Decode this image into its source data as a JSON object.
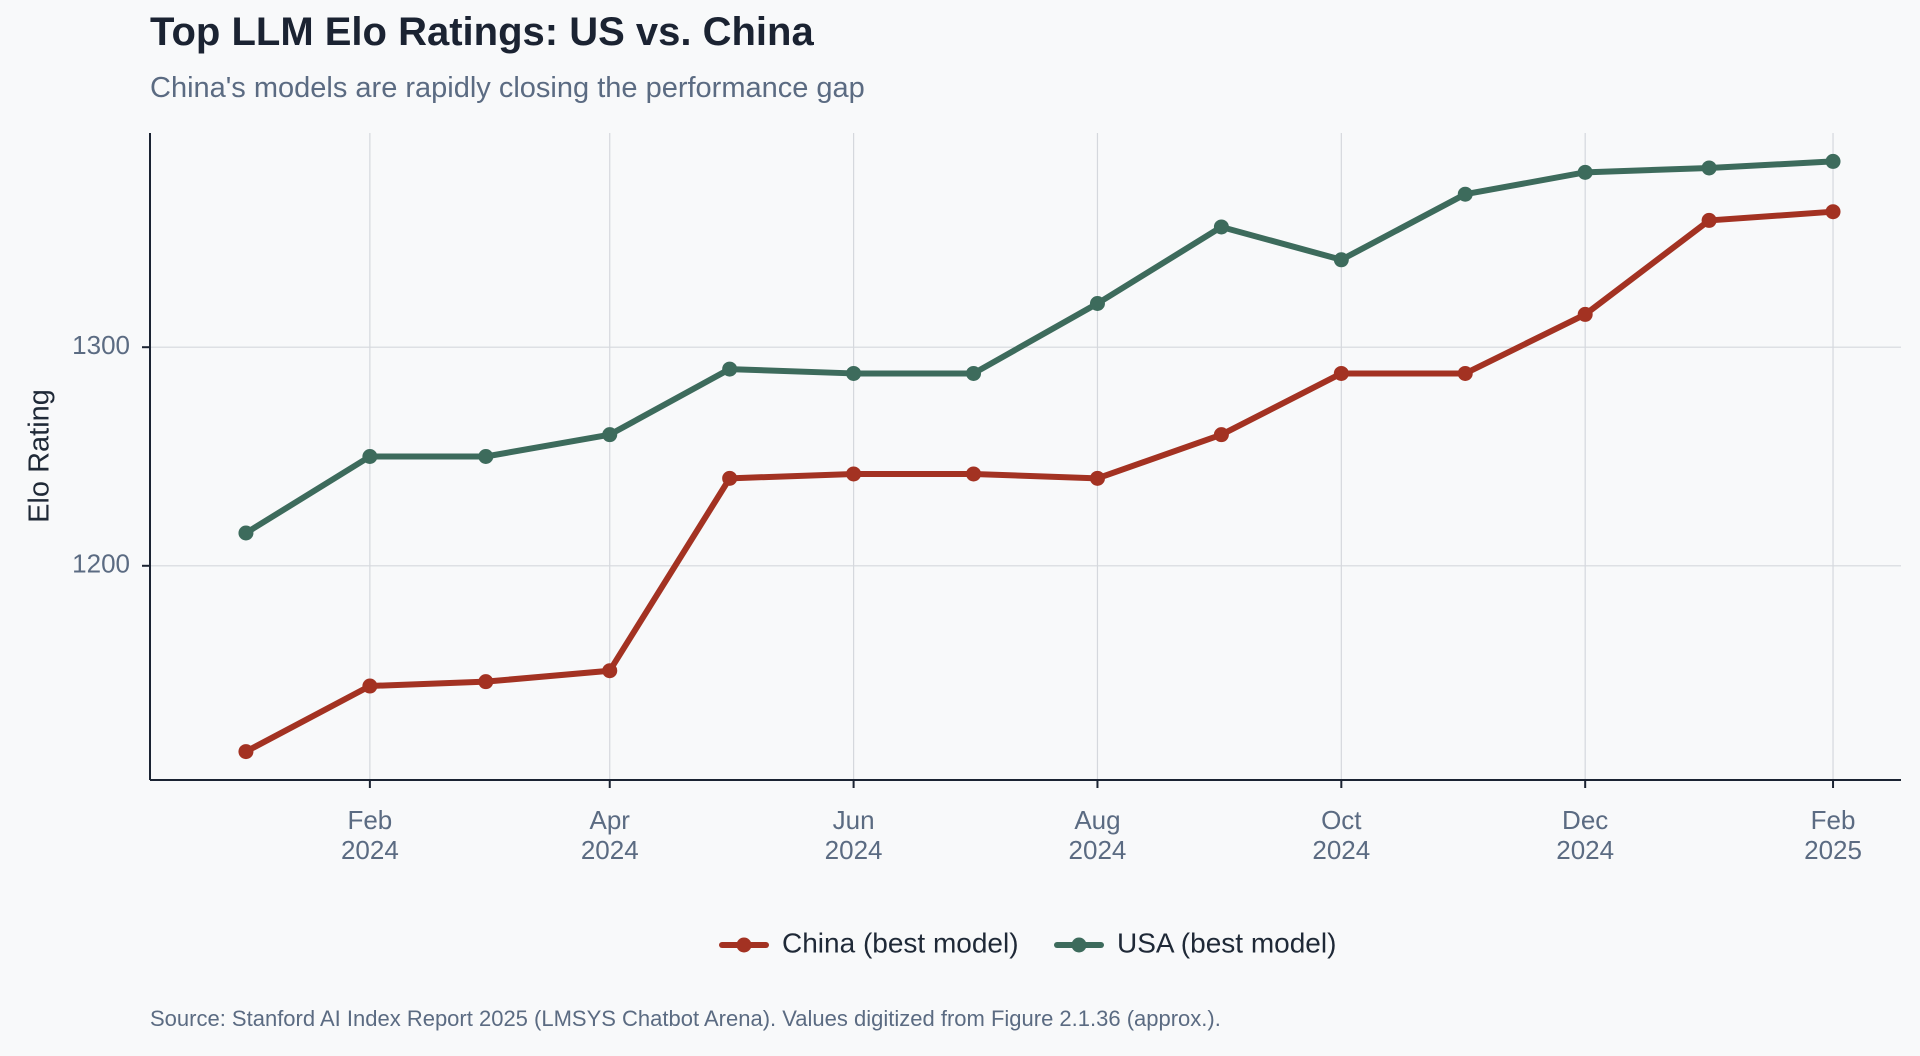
{
  "header": {
    "title": "Top LLM Elo Ratings: US vs. China",
    "subtitle": "China's models are rapidly closing the performance gap"
  },
  "footer": {
    "source": "Source: Stanford AI Index Report 2025 (LMSYS Chatbot Arena). Values digitized from Figure 2.1.36 (approx.)."
  },
  "chart_data": {
    "type": "line",
    "title": "Top LLM Elo Ratings: US vs. China",
    "subtitle": "China's models are rapidly closing the performance gap",
    "xlabel": "",
    "ylabel": "Elo Rating",
    "x": [
      "2024-01-01",
      "2024-02-01",
      "2024-03-01",
      "2024-04-01",
      "2024-05-01",
      "2024-06-01",
      "2024-07-01",
      "2024-08-01",
      "2024-09-01",
      "2024-10-01",
      "2024-11-01",
      "2024-12-01",
      "2025-01-01",
      "2025-02-01"
    ],
    "xlim": [
      "2023-12-08",
      "2025-02-18"
    ],
    "ylim": [
      1102,
      1398
    ],
    "x_ticks": [
      {
        "date": "2024-02-01",
        "month": "Feb",
        "year": "2024"
      },
      {
        "date": "2024-04-01",
        "month": "Apr",
        "year": "2024"
      },
      {
        "date": "2024-06-01",
        "month": "Jun",
        "year": "2024"
      },
      {
        "date": "2024-08-01",
        "month": "Aug",
        "year": "2024"
      },
      {
        "date": "2024-10-01",
        "month": "Oct",
        "year": "2024"
      },
      {
        "date": "2024-12-01",
        "month": "Dec",
        "year": "2024"
      },
      {
        "date": "2025-02-01",
        "month": "Feb",
        "year": "2025"
      }
    ],
    "y_ticks": [
      1200,
      1300
    ],
    "grid": true,
    "legend_position": "bottom-center",
    "series": [
      {
        "name": "China (best model)",
        "color": "#a33222",
        "values": [
          1115,
          1145,
          1147,
          1152,
          1240,
          1242,
          1242,
          1240,
          1260,
          1288,
          1288,
          1315,
          1358,
          1362
        ]
      },
      {
        "name": "USA (best model)",
        "color": "#3d6b5c",
        "values": [
          1215,
          1250,
          1250,
          1260,
          1290,
          1288,
          1288,
          1320,
          1355,
          1340,
          1370,
          1380,
          1382,
          1385
        ]
      }
    ]
  }
}
